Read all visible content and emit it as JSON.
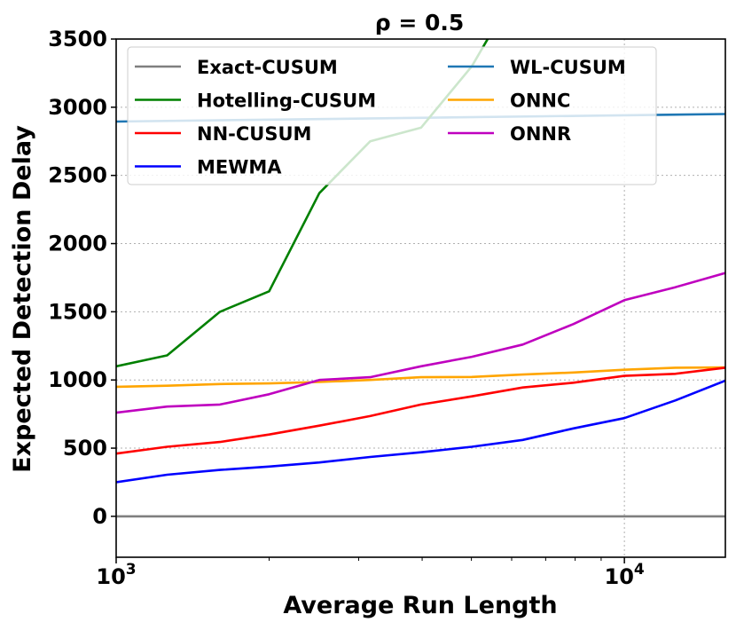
{
  "chart_data": {
    "type": "line",
    "title": "ρ = 0.5",
    "xlabel": "Average Run Length",
    "ylabel": "Expected Detection Delay",
    "xscale": "log",
    "xlim": [
      1000,
      15800
    ],
    "ylim": [
      -300,
      3500
    ],
    "grid": true,
    "legend_position": "top",
    "y_ticks": [
      0,
      500,
      1000,
      1500,
      2000,
      2500,
      3000,
      3500
    ],
    "y_tick_labels": [
      "0",
      "500",
      "1000",
      "1500",
      "2000",
      "2500",
      "3000",
      "3500"
    ],
    "x_major_ticks": [
      1000,
      10000
    ],
    "x_tick_labels": [
      {
        "base": "10",
        "exp": "3"
      },
      {
        "base": "10",
        "exp": "4"
      }
    ],
    "x_minor_ticks": [
      2000,
      3000,
      4000,
      5000,
      6000,
      7000,
      8000,
      9000
    ],
    "series": [
      {
        "name": "Exact-CUSUM",
        "color": "#7f7f7f",
        "x": [
          1000,
          15800
        ],
        "y": [
          0,
          0
        ]
      },
      {
        "name": "WL-CUSUM",
        "color": "#1f77b4",
        "x": [
          1000,
          15800
        ],
        "y": [
          2895,
          2950
        ]
      },
      {
        "name": "Hotelling-CUSUM",
        "color": "#008000",
        "x": [
          1000,
          1260,
          1600,
          2000,
          2510,
          3160,
          3980,
          5010,
          5500
        ],
        "y": [
          1100,
          1180,
          1500,
          1650,
          2370,
          2750,
          2850,
          3300,
          3560
        ]
      },
      {
        "name": "ONNC",
        "color": "#ffa500",
        "x": [
          1000,
          1260,
          1600,
          2000,
          2510,
          3160,
          3980,
          5010,
          6310,
          7940,
          10000,
          12590,
          15800
        ],
        "y": [
          950,
          958,
          970,
          975,
          985,
          1000,
          1020,
          1022,
          1040,
          1055,
          1075,
          1090,
          1092
        ]
      },
      {
        "name": "NN-CUSUM",
        "color": "#ff0000",
        "x": [
          1000,
          1260,
          1600,
          2000,
          2510,
          3160,
          3980,
          5010,
          6310,
          7940,
          10000,
          12590,
          15800
        ],
        "y": [
          460,
          510,
          545,
          600,
          665,
          735,
          820,
          880,
          945,
          980,
          1030,
          1045,
          1090
        ]
      },
      {
        "name": "ONNR",
        "color": "#bf00bf",
        "x": [
          1000,
          1260,
          1600,
          2000,
          2510,
          3160,
          3980,
          5010,
          6310,
          7940,
          10000,
          12590,
          15800
        ],
        "y": [
          760,
          805,
          820,
          895,
          1000,
          1020,
          1100,
          1170,
          1260,
          1410,
          1585,
          1680,
          1785
        ]
      },
      {
        "name": "MEWMA",
        "color": "#0000ff",
        "x": [
          1000,
          1260,
          1600,
          2000,
          2510,
          3160,
          3980,
          5010,
          6310,
          7940,
          10000,
          12590,
          15800
        ],
        "y": [
          250,
          305,
          340,
          365,
          395,
          435,
          470,
          510,
          560,
          645,
          720,
          850,
          995
        ]
      }
    ],
    "legend_order": [
      "Exact-CUSUM",
      "WL-CUSUM",
      "Hotelling-CUSUM",
      "ONNC",
      "NN-CUSUM",
      "ONNR",
      "MEWMA"
    ]
  }
}
